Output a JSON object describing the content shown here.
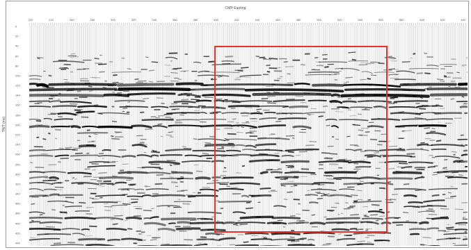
{
  "figure": {
    "title": "CMP Easting",
    "ylabel": "TWT (ms)",
    "x_ticks": [
      "220",
      "240",
      "260",
      "280",
      "300",
      "320",
      "340",
      "360",
      "380",
      "400",
      "420",
      "440",
      "460",
      "480",
      "500",
      "520",
      "540",
      "560",
      "580",
      "600",
      "620",
      "640"
    ],
    "y_ticks": [
      "0",
      "20",
      "40",
      "60",
      "80",
      "100",
      "120",
      "140",
      "160",
      "180",
      "200",
      "220",
      "240",
      "260",
      "280",
      "300",
      "320",
      "340",
      "360",
      "380",
      "400",
      "420",
      "440"
    ],
    "highlight_color": "#e5322d",
    "trace_color": "#000000"
  }
}
